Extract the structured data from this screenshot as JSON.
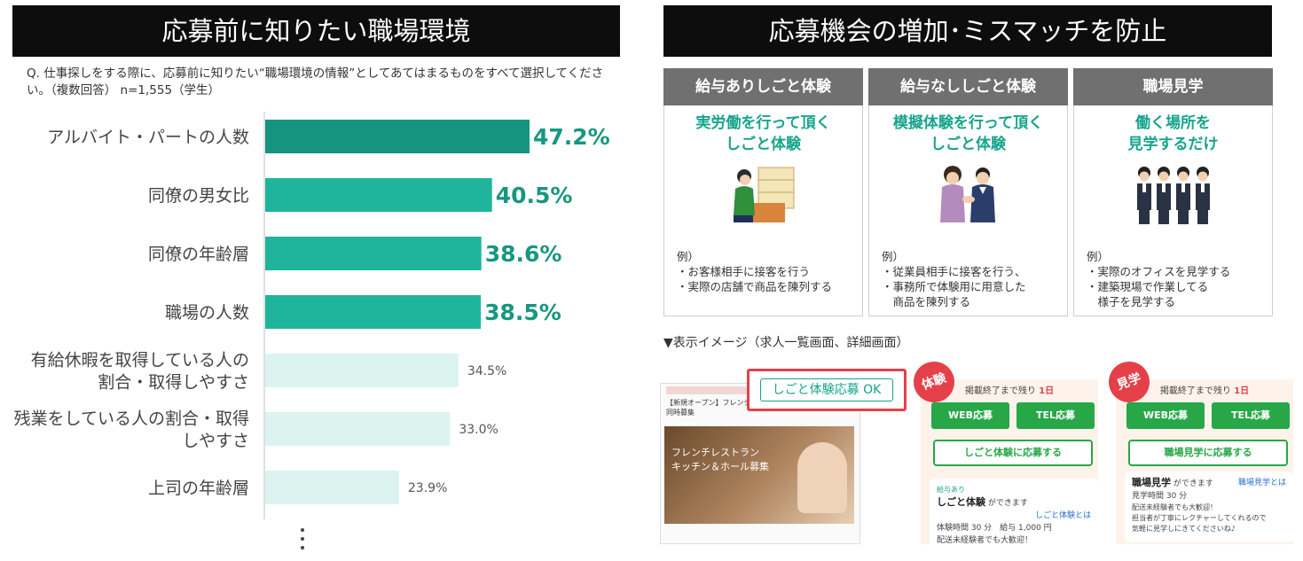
{
  "left": {
    "title": "応募前に知りたい職場環境",
    "question": "Q. 仕事探しをする際に、応募前に知りたい“職場環境の情報”としてあてはまるものをすべて選択してください。（複数回答） n=1,555（学生）"
  },
  "chart_data": {
    "type": "bar",
    "orientation": "horizontal",
    "categories": [
      "アルバイト・パートの人数",
      "同僚の男女比",
      "同僚の年齢層",
      "職場の人数",
      "有給休暇を取得している人の\n割合・取得しやすさ",
      "残業をしている人の割合・取得\nしやすさ",
      "上司の年齢層"
    ],
    "values": [
      47.2,
      40.5,
      38.6,
      38.5,
      34.5,
      33.0,
      23.9
    ],
    "value_labels": [
      "47.2%",
      "40.5%",
      "38.6%",
      "38.5%",
      "34.5%",
      "33.0%",
      "23.9%"
    ],
    "colors": [
      "#16947f",
      "#1eb59c",
      "#1eb59c",
      "#1eb59c",
      "#dcf4ef",
      "#dcf4ef",
      "#dcf4ef"
    ],
    "label_colors": [
      "#17977f",
      "#17977f",
      "#17977f",
      "#17977f",
      "#555555",
      "#555555",
      "#555555"
    ],
    "xlim": [
      0,
      50
    ],
    "legend": "none",
    "grid": false
  },
  "right": {
    "title": "応募機会の増加･ミスマッチを防止",
    "cards": [
      {
        "head": "給与ありしごと体験",
        "sub": "実労働を行って頂く\nしごと体験",
        "icon": "store-clerk-illustration",
        "example": "例）\n・お客様相手に接客を行う\n・実際の店舗で商品を陳列する"
      },
      {
        "head": "給与なししごと体験",
        "sub": "模擬体験を行って頂く\nしごと体験",
        "icon": "handshake-illustration",
        "example": "例）\n・従業員相手に接客を行う、\n・事務所で体験用に用意した\n　商品を陳列する"
      },
      {
        "head": "職場見学",
        "sub": "働く場所を\n見学するだけ",
        "icon": "group-visit-illustration",
        "example": "例）\n・実際のオフィスを見学する\n・建築現場で作業してる\n　様子を見学する"
      }
    ],
    "preview_caption": "▼表示イメージ（求人一覧画面、詳細画面）",
    "listing": {
      "headline": "【新規オープン】フレンチレストランのキッチン＆ホール同時募集",
      "photo_text": "フレンチレストラン\nキッチン＆ホール募集",
      "callout": "しごと体験応募 OK"
    },
    "detail_taiken": {
      "badge": "体験",
      "deadline_prefix": "掲載終了まで残り",
      "deadline_value": "1日",
      "web_btn": "WEB応募",
      "tel_btn": "TEL応募",
      "apply_btn": "しごと体験に応募する",
      "tag": "給与あり",
      "info_title": "しごと体験",
      "info_suffix": "ができます",
      "info_link": "しごと体験とは",
      "info_time": "体験時間 30 分　給与 1,000 円",
      "info_note": "配送未経験者でも大歓迎！"
    },
    "detail_kengaku": {
      "badge": "見学",
      "deadline_prefix": "掲載終了まで残り",
      "deadline_value": "1日",
      "web_btn": "WEB応募",
      "tel_btn": "TEL応募",
      "apply_btn": "職場見学に応募する",
      "info_title": "職場見学",
      "info_suffix": "ができます",
      "info_link": "職場見学とは",
      "info_time": "見学時間 30 分",
      "info_note": "配送未経験者でも大歓迎！\n担当者が丁寧にレクチャーしてくれるので\n気軽に見学しにきてくださいね♪"
    }
  }
}
